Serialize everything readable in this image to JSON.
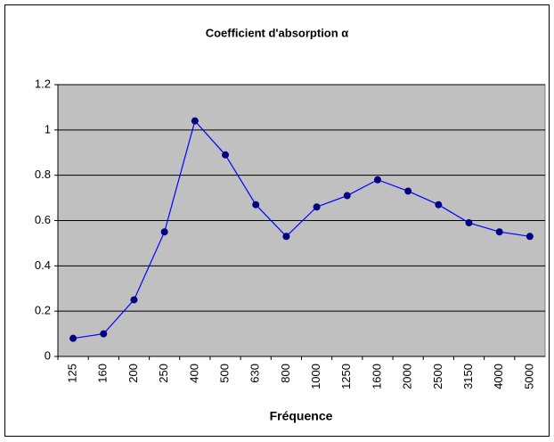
{
  "chart_data": {
    "type": "line",
    "title": "Coefficient d'absorption α",
    "x_label": "Fréquence",
    "categories": [
      "125",
      "160",
      "200",
      "250",
      "400",
      "500",
      "630",
      "800",
      "1000",
      "1250",
      "1600",
      "2000",
      "2500",
      "3150",
      "4000",
      "5000"
    ],
    "values": [
      0.08,
      0.1,
      0.25,
      0.55,
      1.04,
      0.89,
      0.67,
      0.53,
      0.66,
      0.71,
      0.78,
      0.73,
      0.67,
      0.59,
      0.55,
      0.53
    ],
    "color": "#0000ff",
    "marker_color": "#000080",
    "plot_background": "#c0c0c0",
    "ylim": [
      0,
      1.2
    ],
    "yticks": [
      0,
      0.2,
      0.4,
      0.6,
      0.8,
      1,
      1.2
    ],
    "grid": true
  }
}
